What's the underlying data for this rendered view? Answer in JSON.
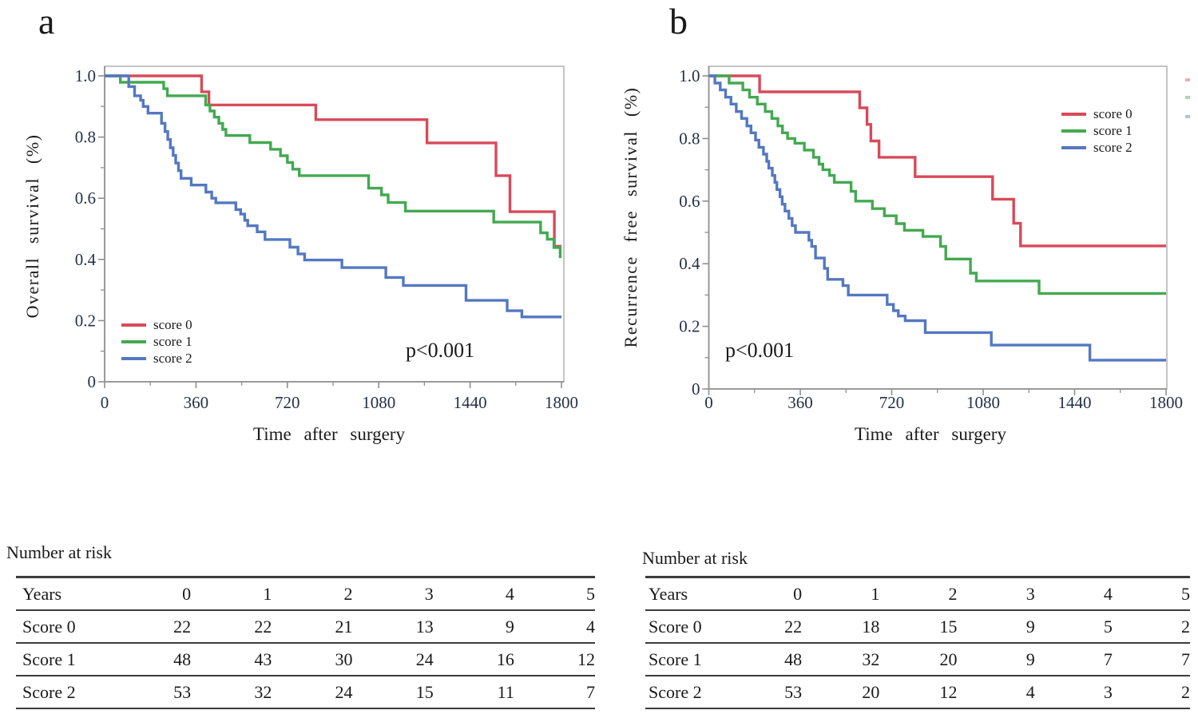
{
  "panels": [
    {
      "label": "a",
      "ylabel": "Overall survival (%)",
      "xlabel": "Time after surgery",
      "p_value": "p<0.001",
      "risk_table": {
        "title": "Number at risk",
        "header": [
          "Years",
          "0",
          "1",
          "2",
          "3",
          "4",
          "5"
        ],
        "rows": [
          [
            "Score 0",
            "22",
            "22",
            "21",
            "13",
            "9",
            "4"
          ],
          [
            "Score 1",
            "48",
            "43",
            "30",
            "24",
            "16",
            "12"
          ],
          [
            "Score 2",
            "53",
            "32",
            "24",
            "15",
            "11",
            "7"
          ]
        ]
      }
    },
    {
      "label": "b",
      "ylabel": "Recurrence free survival (%)",
      "xlabel": "Time after surgery",
      "p_value": "p<0.001",
      "risk_table": {
        "title": "Number at risk",
        "header": [
          "Years",
          "0",
          "1",
          "2",
          "3",
          "4",
          "5"
        ],
        "rows": [
          [
            "Score 0",
            "22",
            "18",
            "15",
            "9",
            "5",
            "2"
          ],
          [
            "Score 1",
            "48",
            "32",
            "20",
            "9",
            "7",
            "7"
          ],
          [
            "Score 2",
            "53",
            "20",
            "12",
            "4",
            "3",
            "2"
          ]
        ]
      }
    }
  ],
  "chart_data": [
    {
      "type": "line",
      "subtype": "kaplan-meier-step",
      "panel": "a",
      "title": "",
      "xlabel": "Time after surgery",
      "ylabel": "Overall survival (%)",
      "xlim": [
        0,
        1800
      ],
      "ylim": [
        0,
        1.0
      ],
      "xticks": [
        0,
        360,
        720,
        1080,
        1440,
        1800
      ],
      "yticks": [
        1.0,
        0.8,
        0.6,
        0.4,
        0.2,
        0
      ],
      "ytick_labels": [
        "1.0",
        "0.8",
        "0.6",
        "0.4",
        "0.2",
        "0"
      ],
      "x_minor_interval": 180,
      "y_minor_interval": 0.1,
      "grid": false,
      "annotation": "p<0.001",
      "legend_position": "lower-left",
      "series": [
        {
          "name": "score 0",
          "color": "#d84a59",
          "steps": [
            [
              0,
              1.0
            ],
            [
              382,
              0.948
            ],
            [
              411,
              0.905
            ],
            [
              832,
              0.857
            ],
            [
              1270,
              0.781
            ],
            [
              1542,
              0.674
            ],
            [
              1597,
              0.556
            ],
            [
              1772,
              0.443
            ]
          ]
        },
        {
          "name": "score 1",
          "color": "#43a951",
          "steps": [
            [
              0,
              1.0
            ],
            [
              62,
              0.979
            ],
            [
              233,
              0.958
            ],
            [
              247,
              0.935
            ],
            [
              398,
              0.905
            ],
            [
              415,
              0.885
            ],
            [
              432,
              0.865
            ],
            [
              450,
              0.845
            ],
            [
              465,
              0.825
            ],
            [
              478,
              0.805
            ],
            [
              572,
              0.782
            ],
            [
              654,
              0.76
            ],
            [
              693,
              0.739
            ],
            [
              720,
              0.717
            ],
            [
              741,
              0.695
            ],
            [
              767,
              0.674
            ],
            [
              1040,
              0.633
            ],
            [
              1091,
              0.611
            ],
            [
              1117,
              0.586
            ],
            [
              1185,
              0.558
            ],
            [
              1533,
              0.522
            ],
            [
              1718,
              0.487
            ],
            [
              1744,
              0.466
            ],
            [
              1770,
              0.439
            ],
            [
              1795,
              0.409
            ]
          ]
        },
        {
          "name": "score 2",
          "color": "#5478c1",
          "steps": [
            [
              0,
              1.0
            ],
            [
              95,
              0.965
            ],
            [
              118,
              0.935
            ],
            [
              142,
              0.92
            ],
            [
              152,
              0.9
            ],
            [
              171,
              0.878
            ],
            [
              224,
              0.845
            ],
            [
              238,
              0.818
            ],
            [
              249,
              0.792
            ],
            [
              259,
              0.765
            ],
            [
              270,
              0.74
            ],
            [
              280,
              0.715
            ],
            [
              291,
              0.69
            ],
            [
              301,
              0.665
            ],
            [
              341,
              0.643
            ],
            [
              399,
              0.62
            ],
            [
              422,
              0.6
            ],
            [
              438,
              0.585
            ],
            [
              517,
              0.563
            ],
            [
              536,
              0.548
            ],
            [
              552,
              0.528
            ],
            [
              564,
              0.51
            ],
            [
              601,
              0.49
            ],
            [
              632,
              0.465
            ],
            [
              730,
              0.44
            ],
            [
              762,
              0.418
            ],
            [
              788,
              0.398
            ],
            [
              935,
              0.373
            ],
            [
              1108,
              0.341
            ],
            [
              1177,
              0.315
            ],
            [
              1424,
              0.266
            ],
            [
              1586,
              0.232
            ],
            [
              1644,
              0.212
            ]
          ]
        }
      ]
    },
    {
      "type": "line",
      "subtype": "kaplan-meier-step",
      "panel": "b",
      "title": "",
      "xlabel": "Time after surgery",
      "ylabel": "Recurrence free survival (%)",
      "xlim": [
        0,
        1800
      ],
      "ylim": [
        0,
        1.0
      ],
      "xticks": [
        0,
        360,
        720,
        1080,
        1440,
        1800
      ],
      "yticks": [
        1.0,
        0.8,
        0.6,
        0.4,
        0.2,
        0
      ],
      "ytick_labels": [
        "1.0",
        "0.8",
        "0.6",
        "0.4",
        "0.2",
        "0"
      ],
      "x_minor_interval": 180,
      "y_minor_interval": 0.1,
      "grid": false,
      "annotation": "p<0.001",
      "legend_position": "upper-right",
      "series": [
        {
          "name": "score 0",
          "color": "#d84a59",
          "steps": [
            [
              0,
              1.0
            ],
            [
              200,
              0.949
            ],
            [
              594,
              0.898
            ],
            [
              623,
              0.845
            ],
            [
              638,
              0.792
            ],
            [
              670,
              0.74
            ],
            [
              812,
              0.678
            ],
            [
              1117,
              0.606
            ],
            [
              1200,
              0.529
            ],
            [
              1227,
              0.457
            ]
          ]
        },
        {
          "name": "score 1",
          "color": "#43a951",
          "steps": [
            [
              0,
              1.0
            ],
            [
              80,
              0.977
            ],
            [
              134,
              0.955
            ],
            [
              160,
              0.932
            ],
            [
              191,
              0.91
            ],
            [
              222,
              0.886
            ],
            [
              248,
              0.864
            ],
            [
              272,
              0.84
            ],
            [
              290,
              0.818
            ],
            [
              310,
              0.8
            ],
            [
              339,
              0.785
            ],
            [
              376,
              0.763
            ],
            [
              412,
              0.74
            ],
            [
              434,
              0.718
            ],
            [
              449,
              0.7
            ],
            [
              475,
              0.682
            ],
            [
              494,
              0.66
            ],
            [
              560,
              0.631
            ],
            [
              578,
              0.6
            ],
            [
              644,
              0.576
            ],
            [
              691,
              0.553
            ],
            [
              738,
              0.528
            ],
            [
              770,
              0.507
            ],
            [
              843,
              0.487
            ],
            [
              912,
              0.455
            ],
            [
              933,
              0.415
            ],
            [
              1030,
              0.37
            ],
            [
              1053,
              0.345
            ],
            [
              1300,
              0.305
            ]
          ]
        },
        {
          "name": "score 2",
          "color": "#5478c1",
          "steps": [
            [
              0,
              1.0
            ],
            [
              24,
              0.977
            ],
            [
              45,
              0.955
            ],
            [
              66,
              0.932
            ],
            [
              87,
              0.91
            ],
            [
              108,
              0.886
            ],
            [
              129,
              0.864
            ],
            [
              150,
              0.84
            ],
            [
              166,
              0.818
            ],
            [
              184,
              0.795
            ],
            [
              197,
              0.772
            ],
            [
              215,
              0.75
            ],
            [
              228,
              0.727
            ],
            [
              236,
              0.705
            ],
            [
              250,
              0.682
            ],
            [
              260,
              0.66
            ],
            [
              268,
              0.637
            ],
            [
              280,
              0.614
            ],
            [
              289,
              0.59
            ],
            [
              300,
              0.568
            ],
            [
              315,
              0.545
            ],
            [
              328,
              0.522
            ],
            [
              341,
              0.5
            ],
            [
              394,
              0.475
            ],
            [
              405,
              0.455
            ],
            [
              420,
              0.418
            ],
            [
              455,
              0.385
            ],
            [
              468,
              0.35
            ],
            [
              528,
              0.33
            ],
            [
              549,
              0.3
            ],
            [
              702,
              0.27
            ],
            [
              727,
              0.25
            ],
            [
              746,
              0.233
            ],
            [
              773,
              0.218
            ],
            [
              852,
              0.18
            ],
            [
              1112,
              0.14
            ],
            [
              1500,
              0.092
            ]
          ]
        }
      ]
    }
  ],
  "colors": {
    "frame": "#b5b5b5",
    "axis": "#9a9a9a",
    "tick": "#8f8f8f",
    "tick_label": "#243049",
    "text": "#1a1a1a",
    "table_line": "#3c3c3c"
  }
}
